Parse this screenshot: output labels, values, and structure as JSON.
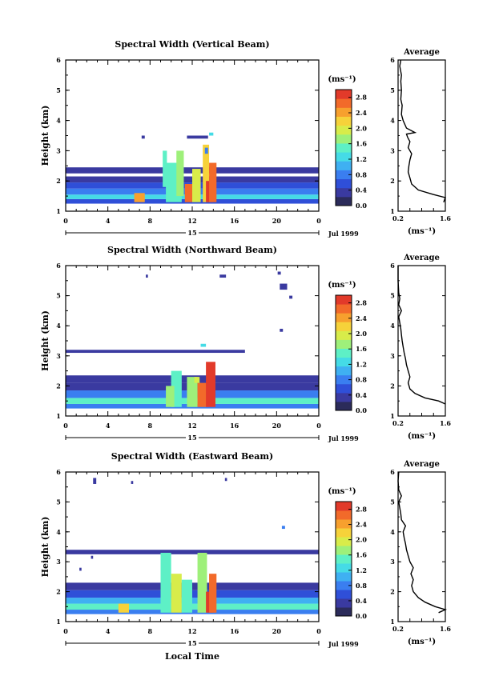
{
  "colorbar": {
    "unit_label": "(ms⁻¹)",
    "colors": [
      "#2b2b5a",
      "#3a3aa0",
      "#2f4fd8",
      "#3a7ef0",
      "#3fb0f2",
      "#45dbe6",
      "#5ef0c6",
      "#9ef07a",
      "#d8ec4a",
      "#f6d23a",
      "#f7a02e",
      "#f26a2a",
      "#e23a2a"
    ]
  },
  "x_common": {
    "ticks": [
      "0",
      "4",
      "8",
      "12",
      "16",
      "20",
      "0"
    ],
    "date_day": "15",
    "month_year": "Jul 1999",
    "xlabel": "Local Time"
  },
  "chart_data": [
    {
      "type": "heatmap",
      "title": "Spectral Width (Vertical Beam)",
      "ylabel": "Height (km)",
      "xlim": [
        0,
        24
      ],
      "ylim": [
        1,
        6
      ],
      "yticks": [
        "1",
        "2",
        "3",
        "4",
        "5",
        "6"
      ],
      "colorbar_ticks": [
        "0.0",
        "0.4",
        "0.8",
        "1.2",
        "1.6",
        "2.0",
        "2.4",
        "2.8"
      ],
      "colorbar_range": [
        0,
        3.0
      ],
      "profile": {
        "title": "Average",
        "xlim": [
          0.2,
          1.6
        ],
        "xticks": [
          "0.2",
          "1.6"
        ],
        "xlabel": "(ms⁻¹)",
        "ylim": [
          1,
          6
        ],
        "yticks": [
          "1",
          "2",
          "3",
          "4",
          "5",
          "6"
        ],
        "points": [
          [
            1.55,
            1.3
          ],
          [
            1.6,
            1.45
          ],
          [
            1.25,
            1.55
          ],
          [
            0.8,
            1.7
          ],
          [
            0.6,
            1.9
          ],
          [
            0.55,
            2.1
          ],
          [
            0.5,
            2.3
          ],
          [
            0.52,
            2.5
          ],
          [
            0.55,
            2.7
          ],
          [
            0.6,
            2.9
          ],
          [
            0.5,
            3.1
          ],
          [
            0.55,
            3.3
          ],
          [
            0.48,
            3.45
          ],
          [
            0.45,
            3.55
          ],
          [
            0.7,
            3.6
          ],
          [
            0.45,
            3.75
          ],
          [
            0.35,
            4.0
          ],
          [
            0.3,
            4.2
          ],
          [
            0.32,
            4.5
          ],
          [
            0.28,
            4.7
          ],
          [
            0.3,
            5.0
          ],
          [
            0.28,
            5.3
          ],
          [
            0.3,
            5.5
          ],
          [
            0.25,
            5.8
          ],
          [
            0.28,
            6.0
          ]
        ]
      },
      "heat": {
        "cells": [
          [
            0,
            24,
            1.25,
            1.4,
            0.6
          ],
          [
            0,
            24,
            1.4,
            1.55,
            1.3
          ],
          [
            0,
            24,
            1.55,
            1.75,
            0.9
          ],
          [
            0,
            24,
            1.75,
            1.95,
            0.5
          ],
          [
            0,
            24,
            1.95,
            2.15,
            0.35
          ],
          [
            0,
            24,
            2.25,
            2.45,
            0.4
          ],
          [
            6.5,
            7.5,
            1.3,
            1.6,
            2.4
          ],
          [
            9.5,
            11,
            1.3,
            2.6,
            1.5
          ],
          [
            10.5,
            11.2,
            1.5,
            3.0,
            1.8
          ],
          [
            9.2,
            9.6,
            1.8,
            3.0,
            1.4
          ],
          [
            11.3,
            12,
            1.3,
            1.9,
            2.6
          ],
          [
            12,
            12.8,
            1.3,
            2.4,
            2.0
          ],
          [
            13,
            13.6,
            1.3,
            3.2,
            2.2
          ],
          [
            13.3,
            14,
            1.3,
            2.0,
            3.0
          ],
          [
            13.6,
            14.3,
            1.3,
            2.6,
            2.7
          ],
          [
            11.5,
            13.5,
            3.4,
            3.5,
            0.4
          ],
          [
            7.2,
            7.5,
            3.4,
            3.5,
            0.4
          ],
          [
            13.2,
            13.5,
            2.9,
            3.1,
            0.8
          ],
          [
            13.6,
            14,
            3.5,
            3.6,
            1.3
          ]
        ]
      }
    },
    {
      "type": "heatmap",
      "title": "Spectral Width (Northward Beam)",
      "ylabel": "Height (km)",
      "xlim": [
        0,
        24
      ],
      "ylim": [
        1,
        6
      ],
      "yticks": [
        "1",
        "2",
        "3",
        "4",
        "5",
        "6"
      ],
      "colorbar_ticks": [
        "0.0",
        "0.4",
        "0.8",
        "1.2",
        "1.6",
        "2.0",
        "2.4",
        "2.8"
      ],
      "colorbar_range": [
        0,
        3.0
      ],
      "profile": {
        "title": "Average",
        "xlim": [
          0.2,
          1.6
        ],
        "xticks": [
          "0.2",
          "1.6"
        ],
        "xlabel": "(ms⁻¹)",
        "ylim": [
          1,
          6
        ],
        "yticks": [
          "1",
          "2",
          "3",
          "4",
          "5",
          "6"
        ],
        "points": [
          [
            1.6,
            1.4
          ],
          [
            1.4,
            1.5
          ],
          [
            1.0,
            1.6
          ],
          [
            0.7,
            1.75
          ],
          [
            0.55,
            1.9
          ],
          [
            0.5,
            2.1
          ],
          [
            0.55,
            2.3
          ],
          [
            0.5,
            2.5
          ],
          [
            0.45,
            2.7
          ],
          [
            0.42,
            2.9
          ],
          [
            0.38,
            3.1
          ],
          [
            0.35,
            3.3
          ],
          [
            0.32,
            3.5
          ],
          [
            0.3,
            3.7
          ],
          [
            0.28,
            3.9
          ],
          [
            0.25,
            4.1
          ],
          [
            0.22,
            4.3
          ],
          [
            0.3,
            4.5
          ],
          [
            0.22,
            4.7
          ],
          [
            0.25,
            4.9
          ],
          [
            0.22,
            5.1
          ],
          [
            0.2,
            5.5
          ],
          [
            0.2,
            5.8
          ],
          [
            0.2,
            6.0
          ]
        ]
      },
      "heat": {
        "cells": [
          [
            0,
            24,
            1.25,
            1.4,
            0.8
          ],
          [
            0,
            24,
            1.4,
            1.6,
            1.5
          ],
          [
            0,
            24,
            1.6,
            1.85,
            0.7
          ],
          [
            0,
            24,
            1.85,
            2.1,
            0.45
          ],
          [
            0,
            24,
            2.1,
            2.35,
            0.35
          ],
          [
            10,
            11,
            1.3,
            2.5,
            1.5
          ],
          [
            9.5,
            10.3,
            1.3,
            2.0,
            1.8
          ],
          [
            11.5,
            12.5,
            1.3,
            2.3,
            1.7
          ],
          [
            12.5,
            13.5,
            1.3,
            2.1,
            2.6
          ],
          [
            13.3,
            14.2,
            1.3,
            2.8,
            2.9
          ],
          [
            12.2,
            12.7,
            2.1,
            2.3,
            2.0
          ],
          [
            0,
            17,
            3.1,
            3.2,
            0.4
          ],
          [
            7.6,
            7.8,
            5.6,
            5.7,
            0.3
          ],
          [
            14.6,
            15.2,
            5.6,
            5.7,
            0.4
          ],
          [
            20.1,
            20.4,
            5.7,
            5.8,
            0.4
          ],
          [
            20.3,
            21,
            5.2,
            5.4,
            0.4
          ],
          [
            21.2,
            21.5,
            4.9,
            5.0,
            0.4
          ],
          [
            20.3,
            20.6,
            3.8,
            3.9,
            0.3
          ],
          [
            12.8,
            13.3,
            3.3,
            3.4,
            1.2
          ]
        ]
      }
    },
    {
      "type": "heatmap",
      "title": "Spectral Width (Eastward Beam)",
      "ylabel": "Height (km)",
      "xlim": [
        0,
        24
      ],
      "ylim": [
        1,
        6
      ],
      "yticks": [
        "1",
        "2",
        "3",
        "4",
        "5",
        "6"
      ],
      "colorbar_ticks": [
        "0.0",
        "0.4",
        "0.8",
        "1.2",
        "1.6",
        "2.0",
        "2.4",
        "2.8"
      ],
      "colorbar_range": [
        0,
        3.0
      ],
      "profile": {
        "title": "Average",
        "xlim": [
          0.2,
          1.6
        ],
        "xticks": [
          "0.2",
          "1.6"
        ],
        "xlabel": "(ms⁻¹)",
        "ylim": [
          1,
          6
        ],
        "yticks": [
          "1",
          "2",
          "3",
          "4",
          "5",
          "6"
        ],
        "points": [
          [
            1.4,
            1.3
          ],
          [
            1.6,
            1.4
          ],
          [
            1.3,
            1.5
          ],
          [
            1.0,
            1.65
          ],
          [
            0.8,
            1.8
          ],
          [
            0.65,
            2.0
          ],
          [
            0.6,
            2.2
          ],
          [
            0.65,
            2.4
          ],
          [
            0.58,
            2.6
          ],
          [
            0.65,
            2.8
          ],
          [
            0.55,
            3.0
          ],
          [
            0.5,
            3.2
          ],
          [
            0.45,
            3.4
          ],
          [
            0.42,
            3.6
          ],
          [
            0.38,
            3.8
          ],
          [
            0.35,
            4.0
          ],
          [
            0.42,
            4.2
          ],
          [
            0.3,
            4.4
          ],
          [
            0.28,
            4.6
          ],
          [
            0.25,
            4.8
          ],
          [
            0.22,
            5.0
          ],
          [
            0.3,
            5.2
          ],
          [
            0.22,
            5.4
          ],
          [
            0.2,
            5.7
          ],
          [
            0.22,
            6.0
          ]
        ]
      },
      "heat": {
        "cells": [
          [
            0,
            24,
            1.25,
            1.4,
            0.7
          ],
          [
            0,
            24,
            1.4,
            1.6,
            1.6
          ],
          [
            0,
            24,
            1.6,
            1.8,
            1.0
          ],
          [
            0,
            24,
            1.8,
            2.05,
            0.5
          ],
          [
            0,
            24,
            2.05,
            2.3,
            0.35
          ],
          [
            0,
            24,
            3.25,
            3.4,
            0.35
          ],
          [
            9,
            10,
            1.3,
            3.3,
            1.4
          ],
          [
            10,
            11,
            1.3,
            2.6,
            1.9
          ],
          [
            11,
            12,
            1.3,
            2.4,
            1.5
          ],
          [
            12.5,
            13.4,
            1.3,
            3.3,
            1.8
          ],
          [
            13.3,
            14,
            1.3,
            2.0,
            2.9
          ],
          [
            13.6,
            14.3,
            1.3,
            2.6,
            2.6
          ],
          [
            5,
            6,
            1.3,
            1.6,
            2.3
          ],
          [
            2.6,
            2.9,
            5.6,
            5.8,
            0.4
          ],
          [
            6.2,
            6.4,
            5.6,
            5.7,
            0.4
          ],
          [
            15.1,
            15.3,
            5.7,
            5.8,
            0.4
          ],
          [
            20.5,
            20.8,
            4.1,
            4.2,
            0.8
          ],
          [
            2.4,
            2.6,
            3.1,
            3.2,
            0.3
          ],
          [
            1.3,
            1.5,
            2.7,
            2.8,
            0.4
          ]
        ]
      }
    }
  ]
}
